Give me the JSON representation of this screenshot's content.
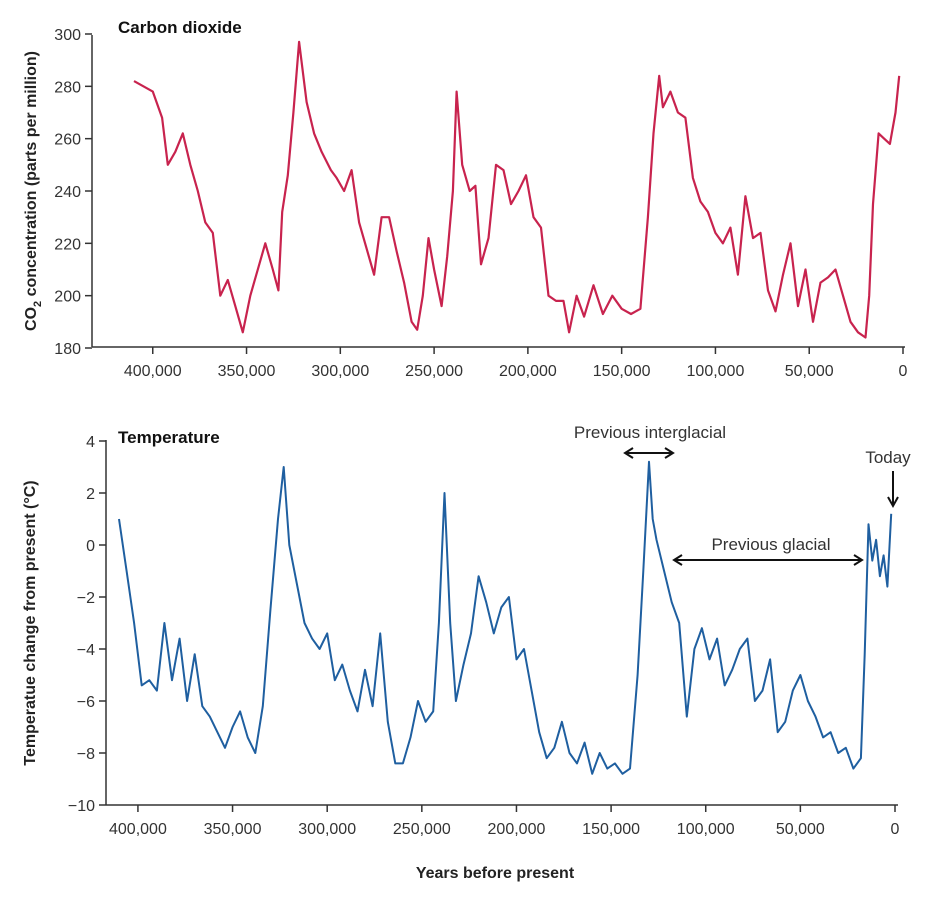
{
  "colors": {
    "co2": "#c8234e",
    "temp": "#1f5fa0"
  },
  "chart_data": [
    {
      "type": "line",
      "title": "Carbon dioxide",
      "xlabel": "",
      "ylabel": "CO₂ concentration (parts per million)",
      "ylabel_parts": {
        "prefix": "CO",
        "sub": "2",
        "suffix": " concentration (parts per million)"
      },
      "xlim": [
        410000,
        0
      ],
      "ylim": [
        180,
        300
      ],
      "x_ticks": [
        400000,
        350000,
        300000,
        250000,
        200000,
        150000,
        100000,
        50000,
        0
      ],
      "x_tick_labels": [
        "400,000",
        "350,000",
        "300,000",
        "250,000",
        "200,000",
        "150,000",
        "100,000",
        "50,000",
        "0"
      ],
      "y_ticks": [
        180,
        200,
        220,
        240,
        260,
        280,
        300
      ],
      "y_tick_labels": [
        "180",
        "200",
        "220",
        "240",
        "260",
        "280",
        "300"
      ],
      "series": [
        {
          "name": "Carbon dioxide",
          "x": [
            410000,
            400000,
            395000,
            392000,
            388000,
            384000,
            380000,
            376000,
            372000,
            368000,
            364000,
            360000,
            356000,
            352000,
            348000,
            344000,
            340000,
            336000,
            333000,
            331000,
            328000,
            325000,
            322000,
            318000,
            314000,
            310000,
            305000,
            302000,
            298000,
            294000,
            290000,
            286000,
            282000,
            278000,
            274000,
            270000,
            266000,
            262000,
            259000,
            256000,
            253000,
            250000,
            246000,
            243000,
            240000,
            238000,
            235000,
            231000,
            228000,
            225000,
            221000,
            217000,
            213000,
            209000,
            205000,
            201000,
            197000,
            193000,
            189000,
            185000,
            181000,
            178000,
            174000,
            170000,
            165000,
            160000,
            155000,
            150000,
            145000,
            140000,
            136000,
            133000,
            130000,
            128000,
            124000,
            120000,
            116000,
            112000,
            108000,
            104000,
            100000,
            96000,
            92000,
            88000,
            84000,
            80000,
            76000,
            72000,
            68000,
            64000,
            60000,
            56000,
            52000,
            48000,
            44000,
            40000,
            36000,
            32000,
            28000,
            24000,
            20000,
            18000,
            16000,
            13000,
            10000,
            7000,
            4000,
            2000
          ],
          "y": [
            282,
            278,
            268,
            250,
            255,
            262,
            250,
            240,
            228,
            224,
            200,
            206,
            196,
            186,
            200,
            210,
            220,
            210,
            202,
            232,
            246,
            270,
            297,
            274,
            262,
            255,
            248,
            245,
            240,
            248,
            228,
            218,
            208,
            230,
            230,
            217,
            205,
            190,
            187,
            200,
            222,
            210,
            196,
            215,
            240,
            278,
            250,
            240,
            242,
            212,
            222,
            250,
            248,
            235,
            240,
            246,
            230,
            226,
            200,
            198,
            198,
            186,
            200,
            192,
            204,
            193,
            200,
            195,
            193,
            195,
            230,
            262,
            284,
            272,
            278,
            270,
            268,
            245,
            236,
            232,
            224,
            220,
            226,
            208,
            238,
            222,
            224,
            202,
            194,
            208,
            220,
            196,
            210,
            190,
            205,
            207,
            210,
            200,
            190,
            186,
            184,
            200,
            235,
            262,
            260,
            258,
            270,
            284
          ]
        }
      ]
    },
    {
      "type": "line",
      "title": "Temperature",
      "xlabel": "Years before present",
      "ylabel": "Temperatue change from present (°C)",
      "xlim": [
        410000,
        0
      ],
      "ylim": [
        -10,
        4
      ],
      "x_ticks": [
        400000,
        350000,
        300000,
        250000,
        200000,
        150000,
        100000,
        50000,
        0
      ],
      "x_tick_labels": [
        "400,000",
        "350,000",
        "300,000",
        "250,000",
        "200,000",
        "150,000",
        "100,000",
        "50,000",
        "0"
      ],
      "y_ticks": [
        4,
        2,
        0,
        -2,
        -4,
        -6,
        -8,
        -10
      ],
      "y_tick_labels": [
        "4",
        "2",
        "0",
        "−2",
        "−4",
        "−6",
        "−8",
        "−10"
      ],
      "series": [
        {
          "name": "Temperature",
          "x": [
            410000,
            406000,
            402000,
            398000,
            394000,
            390000,
            386000,
            382000,
            378000,
            374000,
            370000,
            366000,
            362000,
            358000,
            354000,
            350000,
            346000,
            342000,
            338000,
            334000,
            330000,
            326000,
            323000,
            320000,
            316000,
            312000,
            308000,
            304000,
            300000,
            296000,
            292000,
            288000,
            284000,
            280000,
            276000,
            272000,
            268000,
            264000,
            260000,
            256000,
            252000,
            248000,
            244000,
            241000,
            238000,
            235000,
            232000,
            228000,
            224000,
            220000,
            216000,
            212000,
            208000,
            204000,
            200000,
            196000,
            192000,
            188000,
            184000,
            180000,
            176000,
            172000,
            168000,
            164000,
            160000,
            156000,
            152000,
            148000,
            144000,
            140000,
            136000,
            133000,
            130000,
            128000,
            126000,
            122000,
            118000,
            114000,
            110000,
            106000,
            102000,
            98000,
            94000,
            90000,
            86000,
            82000,
            78000,
            74000,
            70000,
            66000,
            62000,
            58000,
            54000,
            50000,
            46000,
            42000,
            38000,
            34000,
            30000,
            26000,
            22000,
            18000,
            16000,
            14000,
            12000,
            10000,
            8000,
            6000,
            4000,
            2000
          ],
          "y": [
            1.0,
            -1.0,
            -3.0,
            -5.4,
            -5.2,
            -5.6,
            -3.0,
            -5.2,
            -3.6,
            -6.0,
            -4.2,
            -6.2,
            -6.6,
            -7.2,
            -7.8,
            -7.0,
            -6.4,
            -7.4,
            -8.0,
            -6.2,
            -2.5,
            1.0,
            3.0,
            0.0,
            -1.5,
            -3.0,
            -3.6,
            -4.0,
            -3.4,
            -5.2,
            -4.6,
            -5.6,
            -6.4,
            -4.8,
            -6.2,
            -3.4,
            -6.8,
            -8.4,
            -8.4,
            -7.4,
            -6.0,
            -6.8,
            -6.4,
            -3.0,
            2.0,
            -3.0,
            -6.0,
            -4.6,
            -3.4,
            -1.2,
            -2.2,
            -3.4,
            -2.4,
            -2.0,
            -4.4,
            -4.0,
            -5.6,
            -7.2,
            -8.2,
            -7.8,
            -6.8,
            -8.0,
            -8.4,
            -7.6,
            -8.8,
            -8.0,
            -8.6,
            -8.4,
            -8.8,
            -8.6,
            -5.0,
            -1.0,
            3.2,
            1.0,
            0.2,
            -1.0,
            -2.2,
            -3.0,
            -6.6,
            -4.0,
            -3.2,
            -4.4,
            -3.6,
            -5.4,
            -4.8,
            -4.0,
            -3.6,
            -6.0,
            -5.6,
            -4.4,
            -7.2,
            -6.8,
            -5.6,
            -5.0,
            -6.0,
            -6.6,
            -7.4,
            -7.2,
            -8.0,
            -7.8,
            -8.6,
            -8.2,
            -4.2,
            0.8,
            -0.6,
            0.2,
            -1.2,
            -0.4,
            -1.6,
            1.2
          ]
        }
      ],
      "annotations": [
        {
          "text": "Previous interglacial",
          "from": 140000,
          "to": 118000
        },
        {
          "text": "Previous glacial",
          "from": 117000,
          "to": 16000
        },
        {
          "text": "Today",
          "at": 0
        }
      ]
    }
  ]
}
